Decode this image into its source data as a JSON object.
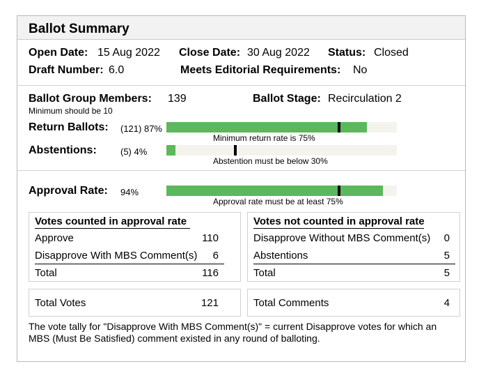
{
  "title": "Ballot Summary",
  "info": {
    "open_date_label": "Open Date:",
    "open_date": "15 Aug 2022",
    "close_date_label": "Close Date:",
    "close_date": "30 Aug 2022",
    "status_label": "Status:",
    "status": "Closed",
    "draft_number_label": "Draft Number:",
    "draft_number": "6.0",
    "editorial_label": "Meets Editorial Requirements:",
    "editorial": "No"
  },
  "group": {
    "members_label": "Ballot Group Members:",
    "members": "139",
    "members_note": "Minimum should be 10",
    "stage_label": "Ballot Stage:",
    "stage": "Recirculation 2"
  },
  "bars": {
    "return": {
      "label": "Return Ballots:",
      "count": "(121) 87%",
      "fraction": 0.87,
      "threshold": 0.75,
      "caption": "Minimum return rate is 75%"
    },
    "abstentions": {
      "label": "Abstentions:",
      "count": "(5) 4%",
      "fraction": 0.04,
      "threshold": 0.3,
      "caption": "Abstention must be below 30%"
    },
    "approval": {
      "label": "Approval Rate:",
      "count": "94%",
      "fraction": 0.94,
      "threshold": 0.75,
      "caption": "Approval rate must be at least 75%"
    }
  },
  "colors": {
    "bar_fill": "#5cb85c",
    "bar_track": "#f4f3ee",
    "marker": "#000000",
    "header_bg": "#f2f2f2"
  },
  "counted": {
    "heading": "Votes counted in approval rate",
    "rows": [
      {
        "label": "Approve",
        "value": "110"
      },
      {
        "label": "Disapprove With MBS Comment(s)",
        "value": "6"
      }
    ],
    "total_label": "Total",
    "total": "116"
  },
  "not_counted": {
    "heading": "Votes not counted in approval rate",
    "rows": [
      {
        "label": "Disapprove Without MBS Comment(s)",
        "value": "0"
      },
      {
        "label": "Abstentions",
        "value": "5"
      }
    ],
    "total_label": "Total",
    "total": "5"
  },
  "totals": {
    "votes_label": "Total Votes",
    "votes": "121",
    "comments_label": "Total Comments",
    "comments": "4"
  },
  "footnote": "The vote tally for \"Disapprove With MBS Comment(s)\" = current Disapprove votes for which an MBS (Must Be Satisfied) comment existed in any round of balloting."
}
